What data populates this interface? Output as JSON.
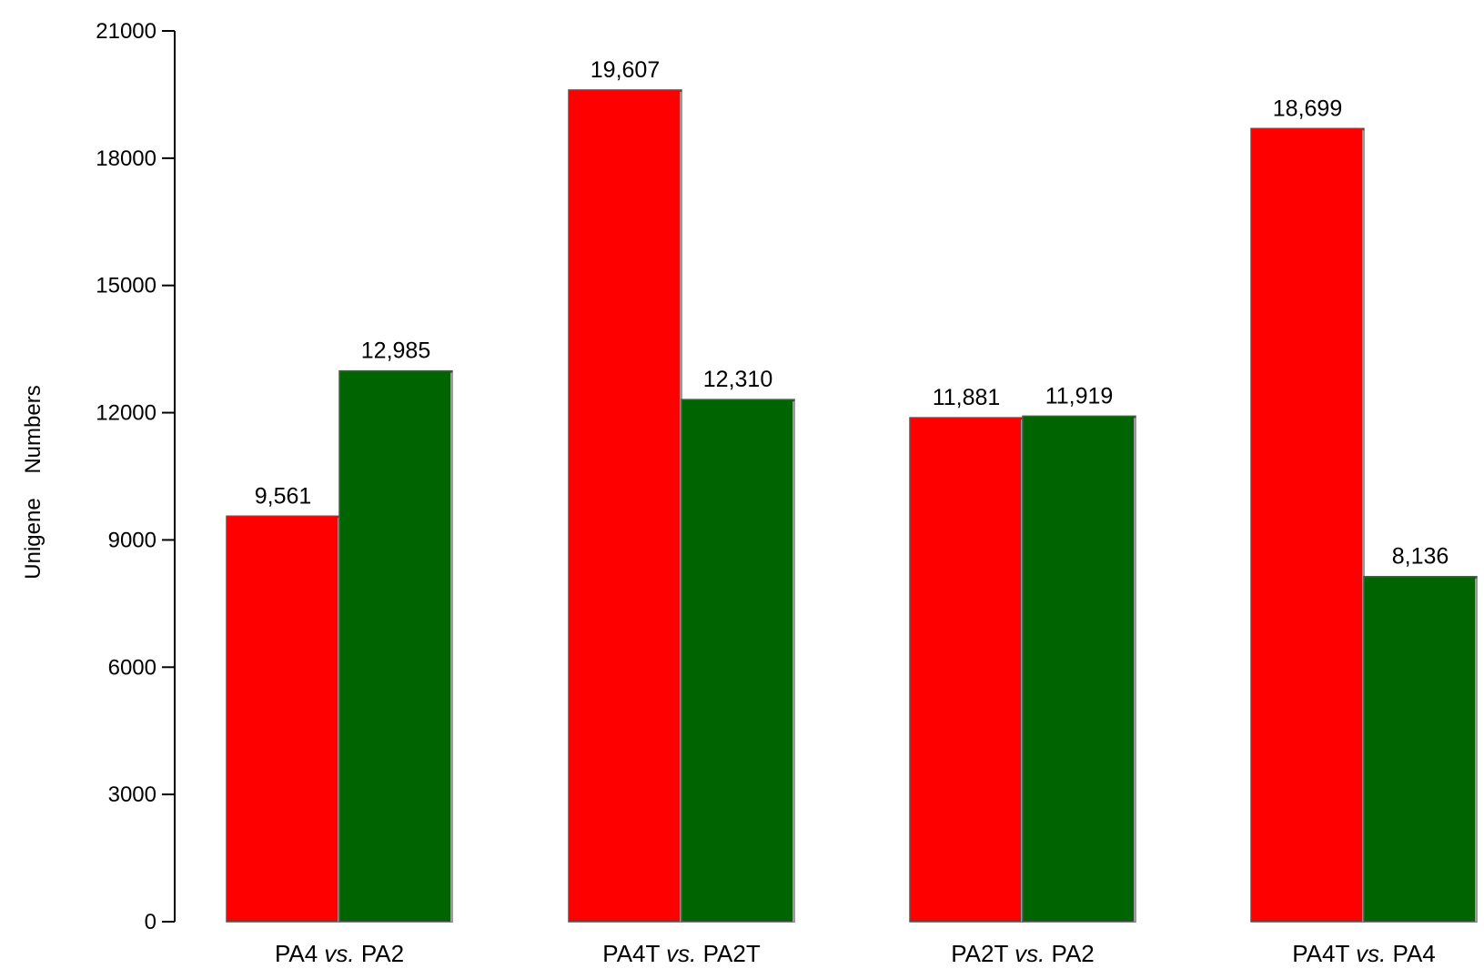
{
  "chart_data": {
    "type": "bar",
    "title": "",
    "xlabel": "",
    "ylabel": "Unigene    Numbers",
    "ylim": [
      0,
      21000
    ],
    "yticks": [
      0,
      3000,
      6000,
      9000,
      12000,
      15000,
      18000,
      21000
    ],
    "ytick_labels": [
      "0",
      "3000",
      "6000",
      "9000",
      "12000",
      "15000",
      "18000",
      "21000"
    ],
    "grid": false,
    "legend": "none",
    "categories": [
      {
        "prefix": "PA4 ",
        "vs": "vs.",
        "suffix": " PA2"
      },
      {
        "prefix": "PA4T ",
        "vs": "vs.",
        "suffix": " PA2T"
      },
      {
        "prefix": "PA2T ",
        "vs": "vs.",
        "suffix": " PA2"
      },
      {
        "prefix": "PA4T ",
        "vs": "vs.",
        "suffix": " PA4"
      }
    ],
    "series": [
      {
        "color": "#ff0000",
        "values": [
          9561,
          19607,
          11881,
          18699
        ],
        "labels": [
          "9,561",
          "19,607",
          "11,881",
          "18,699"
        ]
      },
      {
        "color": "#006400",
        "values": [
          12985,
          12310,
          11919,
          8136
        ],
        "labels": [
          "12,985",
          "12,310",
          "11,919",
          "8,136"
        ]
      }
    ]
  }
}
